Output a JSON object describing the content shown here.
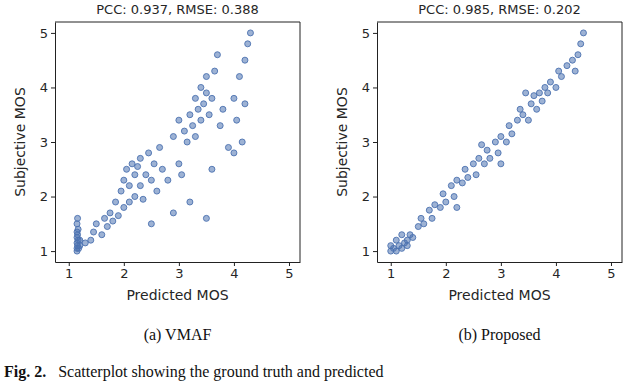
{
  "chart_data": [
    {
      "type": "scatter",
      "title": "PCC: 0.937, RMSE: 0.388",
      "x_label": "Predicted MOS",
      "y_label": "Subjective MOS",
      "caption": "(a) VMAF",
      "color": "#4c72b0",
      "marker": "o",
      "grid": false,
      "xlim": [
        0.75,
        5.2
      ],
      "ylim": [
        0.8,
        5.2
      ],
      "xticks": [
        1,
        2,
        3,
        4,
        5
      ],
      "yticks": [
        1,
        2,
        3,
        4,
        5
      ],
      "x": [
        1.15,
        1.15,
        1.16,
        1.15,
        1.17,
        1.15,
        1.16,
        1.15,
        1.17,
        1.15,
        1.16,
        1.18,
        1.2,
        1.2,
        1.3,
        1.4,
        1.45,
        1.5,
        1.6,
        1.65,
        1.7,
        1.75,
        1.8,
        1.85,
        1.9,
        1.95,
        2.0,
        2.0,
        2.05,
        2.1,
        2.1,
        2.15,
        2.2,
        2.2,
        2.25,
        2.3,
        2.3,
        2.35,
        2.4,
        2.45,
        2.5,
        2.5,
        2.55,
        2.6,
        2.65,
        2.7,
        2.8,
        2.9,
        2.9,
        3.0,
        3.05,
        3.1,
        3.15,
        3.2,
        3.2,
        3.25,
        3.3,
        3.3,
        3.35,
        3.4,
        3.4,
        3.45,
        3.5,
        3.5,
        3.5,
        3.55,
        3.6,
        3.65,
        3.7,
        3.75,
        3.8,
        3.9,
        4.0,
        4.0,
        4.05,
        4.1,
        4.15,
        4.2,
        4.25,
        4.3,
        4.2,
        3.6,
        3.0
      ],
      "values": [
        1.0,
        1.05,
        1.1,
        1.15,
        1.2,
        1.25,
        1.3,
        1.35,
        1.4,
        1.5,
        1.6,
        1.05,
        1.1,
        1.2,
        1.15,
        1.2,
        1.35,
        1.5,
        1.3,
        1.6,
        1.45,
        1.7,
        1.55,
        1.9,
        1.65,
        2.1,
        1.8,
        2.3,
        2.5,
        1.9,
        2.2,
        2.6,
        2.0,
        2.4,
        2.55,
        2.2,
        2.7,
        1.95,
        2.4,
        2.8,
        2.3,
        1.5,
        2.6,
        2.1,
        2.9,
        2.5,
        2.3,
        1.7,
        3.1,
        2.6,
        2.4,
        3.2,
        3.0,
        1.9,
        3.5,
        3.3,
        3.8,
        3.1,
        3.6,
        4.0,
        3.4,
        3.7,
        3.9,
        1.6,
        4.2,
        3.5,
        3.8,
        4.3,
        4.6,
        3.3,
        3.6,
        2.9,
        2.8,
        3.8,
        3.4,
        4.2,
        3.0,
        4.5,
        4.8,
        5.0,
        3.7,
        2.5,
        3.4
      ]
    },
    {
      "type": "scatter",
      "title": "PCC: 0.985, RMSE: 0.202",
      "x_label": "Predicted MOS",
      "y_label": "Subjective MOS",
      "caption": "(b) Proposed",
      "color": "#4c72b0",
      "marker": "o",
      "grid": false,
      "xlim": [
        0.75,
        5.2
      ],
      "ylim": [
        0.8,
        5.2
      ],
      "xticks": [
        1,
        2,
        3,
        4,
        5
      ],
      "yticks": [
        1,
        2,
        3,
        4,
        5
      ],
      "x": [
        1.0,
        1.05,
        1.1,
        1.15,
        1.2,
        1.25,
        1.3,
        1.35,
        1.4,
        1.5,
        1.55,
        1.6,
        1.7,
        1.75,
        1.8,
        1.9,
        1.95,
        2.0,
        2.1,
        2.15,
        2.2,
        2.3,
        2.35,
        2.4,
        2.5,
        2.55,
        2.6,
        2.7,
        2.75,
        2.8,
        2.9,
        2.95,
        3.0,
        3.1,
        3.15,
        3.2,
        3.3,
        3.35,
        3.4,
        3.5,
        3.55,
        3.6,
        3.65,
        3.7,
        3.75,
        3.8,
        3.85,
        3.9,
        4.0,
        4.05,
        4.1,
        4.2,
        4.3,
        4.35,
        4.4,
        4.5,
        4.45,
        3.0,
        2.2,
        1.3,
        1.1,
        1.2,
        1.0,
        3.45,
        2.65
      ],
      "values": [
        1.0,
        1.05,
        1.0,
        1.1,
        1.05,
        1.15,
        1.2,
        1.3,
        1.25,
        1.45,
        1.6,
        1.5,
        1.75,
        1.6,
        1.85,
        1.8,
        2.05,
        1.9,
        2.2,
        2.0,
        2.3,
        2.25,
        2.5,
        2.35,
        2.6,
        2.4,
        2.7,
        2.6,
        2.85,
        2.7,
        3.0,
        2.8,
        3.1,
        3.0,
        3.3,
        3.15,
        3.4,
        3.6,
        3.5,
        3.4,
        3.7,
        3.85,
        3.6,
        3.9,
        3.75,
        4.0,
        3.9,
        4.1,
        4.0,
        4.3,
        4.2,
        4.4,
        4.5,
        4.3,
        4.6,
        5.0,
        4.8,
        2.6,
        1.8,
        1.1,
        1.2,
        1.3,
        1.1,
        3.9,
        2.95
      ]
    }
  ],
  "figure_caption": {
    "label": "Fig. 2.",
    "text": "Scatterplot showing the ground truth and predicted"
  }
}
